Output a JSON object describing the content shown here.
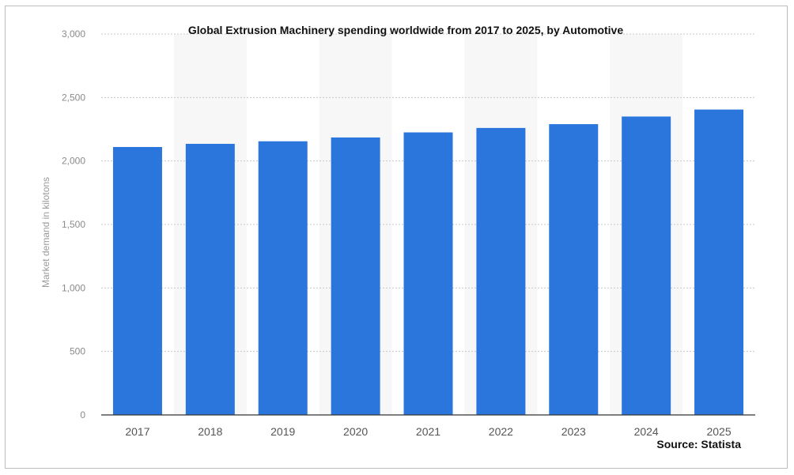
{
  "chart_data": {
    "type": "bar",
    "title": "Global Extrusion Machinery spending worldwide from 2017 to 2025, by Automotive",
    "xlabel": "",
    "ylabel": "Market demand in kilotons",
    "categories": [
      "2017",
      "2018",
      "2019",
      "2020",
      "2021",
      "2022",
      "2023",
      "2024",
      "2025"
    ],
    "values": [
      2110,
      2135,
      2155,
      2185,
      2225,
      2260,
      2290,
      2350,
      2405
    ],
    "ylim": [
      0,
      3000
    ],
    "yticks": [
      0,
      500,
      1000,
      1500,
      2000,
      2500,
      3000
    ],
    "ytick_labels": [
      "0",
      "500",
      "1,000",
      "1,500",
      "2,000",
      "2,500",
      "3,000"
    ],
    "grid": true,
    "bar_color": "#2a76dd",
    "source": "Source: Statista"
  }
}
